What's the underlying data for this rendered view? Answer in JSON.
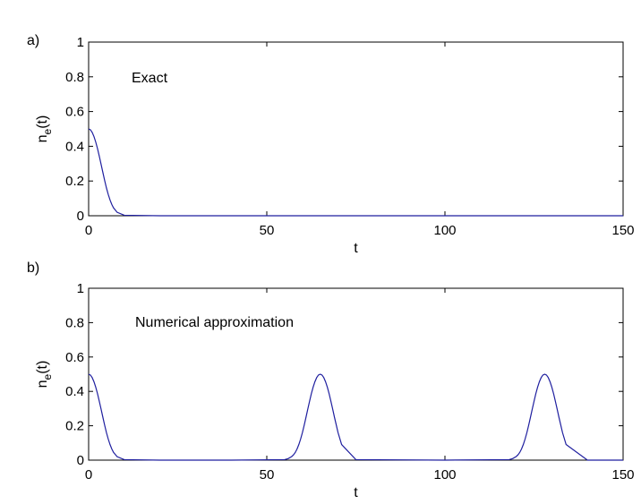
{
  "chart_data": [
    {
      "type": "line",
      "panel_label": "a)",
      "annotation": "Exact",
      "xlabel": "t",
      "ylabel": "n",
      "ylabel_sub": "e",
      "ylabel_suffix": "(t)",
      "xlim": [
        0,
        150
      ],
      "ylim": [
        0,
        1
      ],
      "xticks": [
        0,
        50,
        100,
        150
      ],
      "yticks": [
        0,
        0.2,
        0.4,
        0.6,
        0.8,
        1
      ],
      "grid": false,
      "color": "#1f1f9f",
      "series": [
        {
          "x": [
            0,
            0.5,
            1,
            1.5,
            2,
            2.5,
            3,
            3.5,
            4,
            4.5,
            5,
            5.5,
            6,
            6.5,
            7,
            8,
            10,
            20,
            40,
            60,
            80,
            100,
            120,
            140,
            150
          ],
          "y": [
            0.5,
            0.495,
            0.48,
            0.456,
            0.424,
            0.386,
            0.342,
            0.296,
            0.249,
            0.203,
            0.16,
            0.123,
            0.091,
            0.065,
            0.045,
            0.02,
            0.003,
            0,
            0,
            0,
            0,
            0,
            0,
            0,
            0
          ]
        }
      ]
    },
    {
      "type": "line",
      "panel_label": "b)",
      "annotation": "Numerical approximation",
      "xlabel": "t",
      "ylabel": "n",
      "ylabel_sub": "e",
      "ylabel_suffix": "(t)",
      "xlim": [
        0,
        150
      ],
      "ylim": [
        0,
        1
      ],
      "xticks": [
        0,
        50,
        100,
        150
      ],
      "yticks": [
        0,
        0.2,
        0.4,
        0.6,
        0.8,
        1
      ],
      "grid": false,
      "color": "#1f1f9f",
      "series": [
        {
          "x": [
            0,
            0.5,
            1,
            1.5,
            2,
            2.5,
            3,
            3.5,
            4,
            4.5,
            5,
            5.5,
            6,
            6.5,
            7,
            8,
            10,
            20,
            40,
            55,
            56,
            57,
            57.5,
            58,
            58.5,
            59,
            59.5,
            60,
            60.5,
            61,
            61.5,
            62,
            62.5,
            63,
            63.5,
            64,
            64.5,
            65,
            65.5,
            66,
            66.5,
            67,
            67.5,
            68,
            68.5,
            69,
            70,
            71,
            75,
            100,
            118,
            119,
            120,
            120.5,
            121,
            121.5,
            122,
            122.5,
            123,
            123.5,
            124,
            124.5,
            125,
            125.5,
            126,
            126.5,
            127,
            127.5,
            128,
            128.5,
            129,
            129.5,
            130,
            130.5,
            131,
            131.5,
            132,
            133,
            134,
            140,
            150
          ],
          "y": [
            0.5,
            0.495,
            0.48,
            0.456,
            0.424,
            0.386,
            0.342,
            0.296,
            0.249,
            0.203,
            0.16,
            0.123,
            0.091,
            0.065,
            0.045,
            0.02,
            0.003,
            0,
            0,
            0.003,
            0.009,
            0.021,
            0.031,
            0.045,
            0.065,
            0.091,
            0.123,
            0.16,
            0.203,
            0.249,
            0.296,
            0.342,
            0.386,
            0.424,
            0.456,
            0.48,
            0.495,
            0.5,
            0.495,
            0.48,
            0.456,
            0.424,
            0.386,
            0.342,
            0.296,
            0.249,
            0.16,
            0.091,
            0.003,
            0,
            0.003,
            0.009,
            0.021,
            0.031,
            0.045,
            0.065,
            0.091,
            0.123,
            0.16,
            0.203,
            0.249,
            0.296,
            0.342,
            0.386,
            0.424,
            0.456,
            0.48,
            0.495,
            0.5,
            0.495,
            0.48,
            0.456,
            0.424,
            0.386,
            0.342,
            0.296,
            0.249,
            0.16,
            0.091,
            0,
            0
          ]
        }
      ]
    }
  ]
}
